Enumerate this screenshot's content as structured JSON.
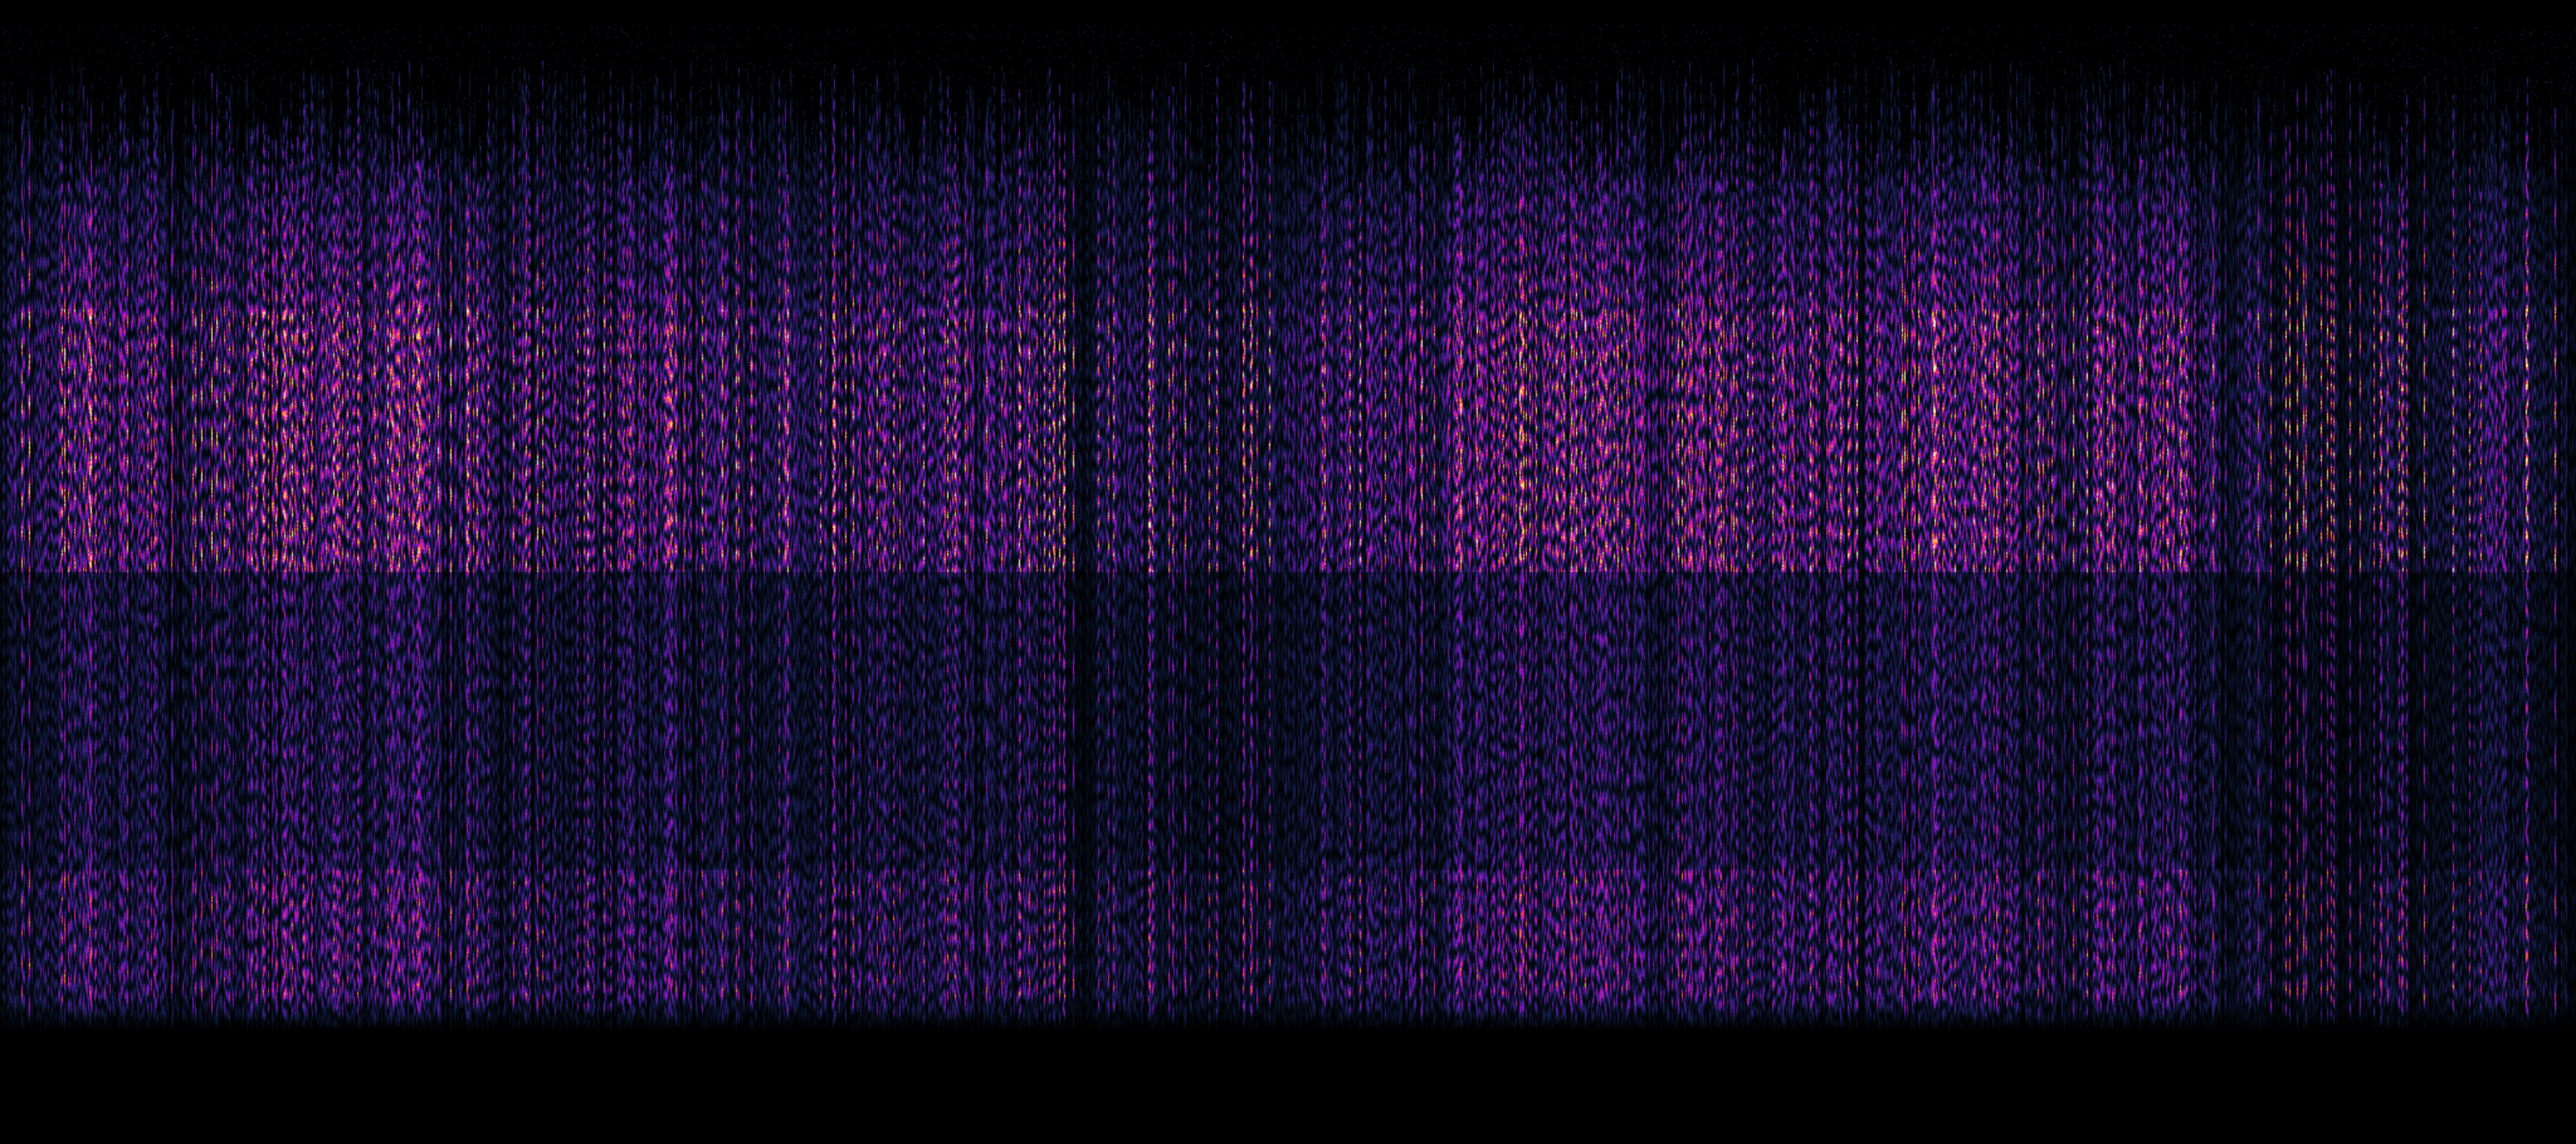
{
  "view": {
    "type": "spectrogram",
    "background": "#000000",
    "colormap": [
      "#000000",
      "#0e1a3c",
      "#4a1a9a",
      "#a812c8",
      "#f0207a",
      "#ff9a20",
      "#fff6c0"
    ]
  }
}
